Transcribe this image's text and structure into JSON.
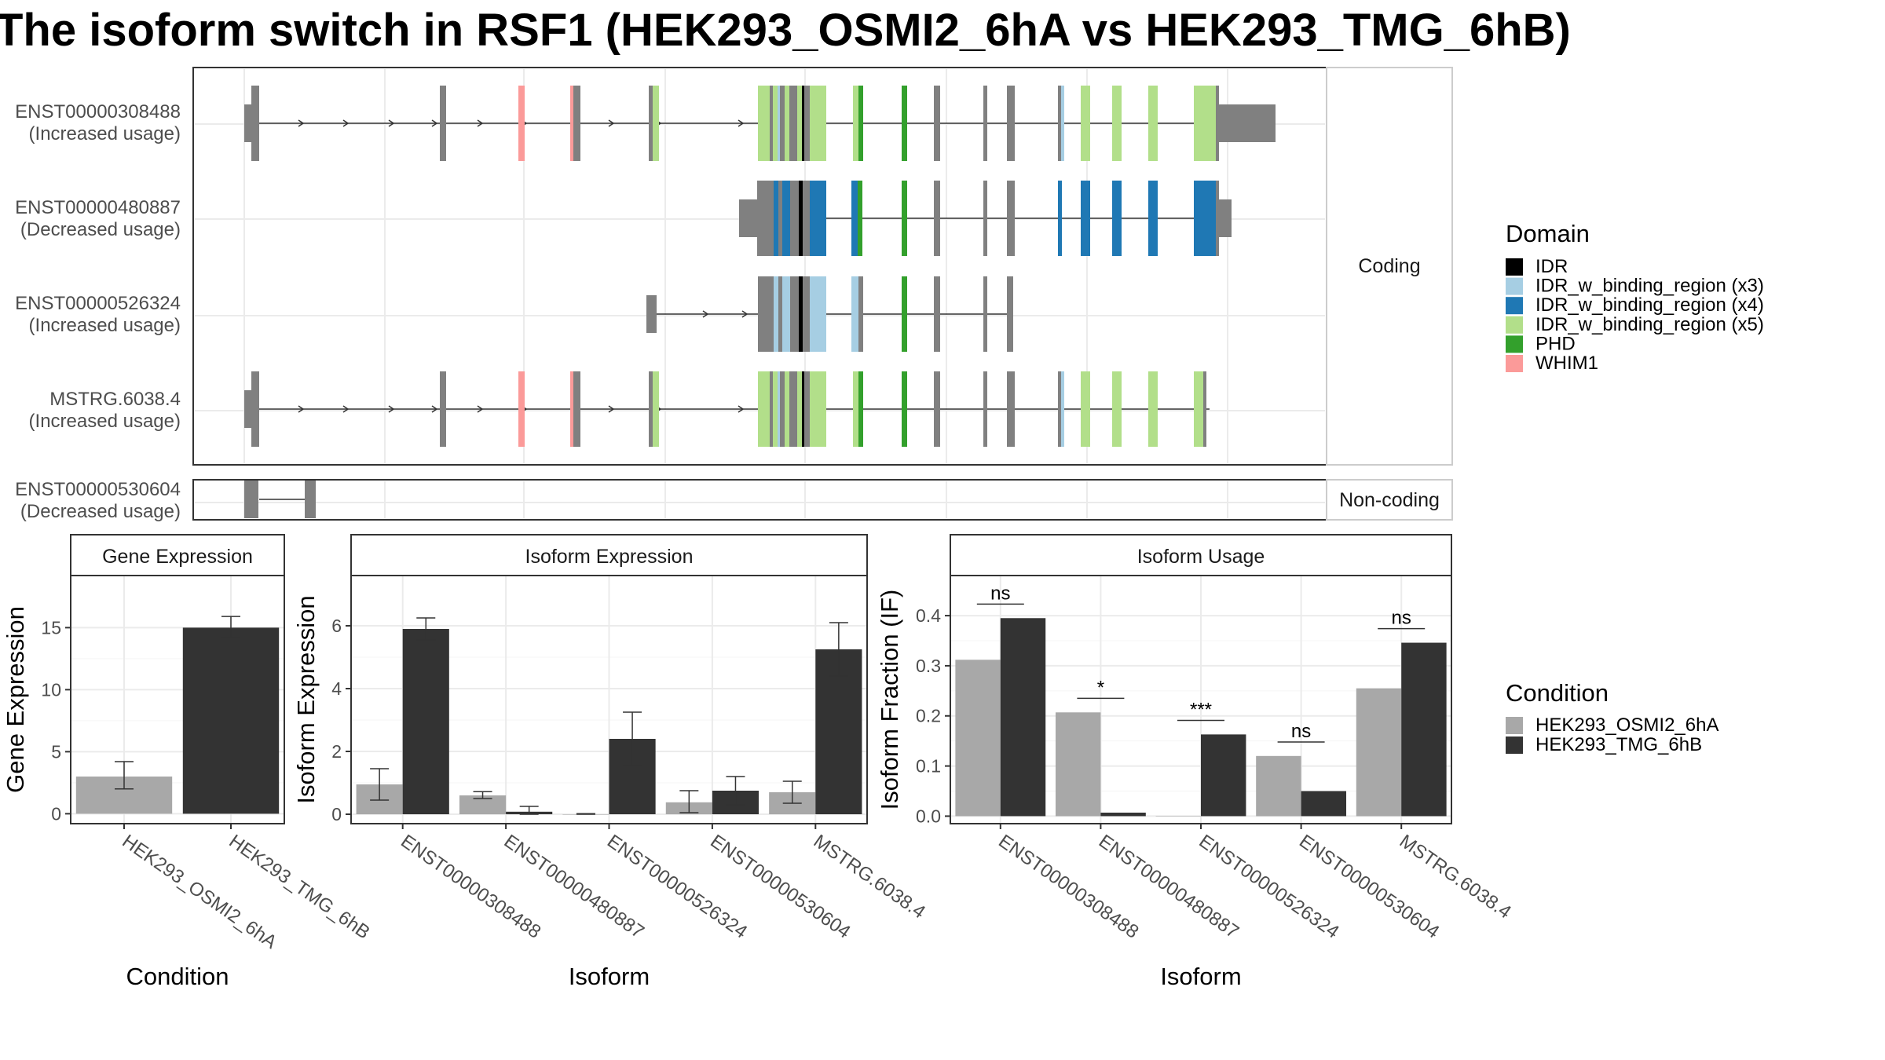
{
  "title": "The isoform switch in RSF1 (HEK293_OSMI2_6hA vs HEK293_TMG_6hB)",
  "colors": {
    "IDR": "#000000",
    "IDR_w_binding_region (x3)": "#a6cee3",
    "IDR_w_binding_region (x4)": "#1f78b4",
    "IDR_w_binding_region (x5)": "#b2df8a",
    "PHD": "#33a02c",
    "WHIM1": "#fb9a99",
    "exon": "#808080",
    "cond_a": "#a8a8a8",
    "cond_b": "#333333"
  },
  "structure": {
    "coding_label": "Coding",
    "noncoding_label": "Non-coding",
    "isoforms": [
      {
        "id": "ENST00000308488",
        "usage": "(Increased usage)"
      },
      {
        "id": "ENST00000480887",
        "usage": "(Decreased usage)"
      },
      {
        "id": "ENST00000526324",
        "usage": "(Increased usage)"
      },
      {
        "id": "MSTRG.6038.4",
        "usage": "(Increased usage)"
      },
      {
        "id": "ENST00000530604",
        "usage": "(Decreased usage)"
      }
    ]
  },
  "legend_domain": {
    "title": "Domain",
    "items": [
      {
        "label": "IDR",
        "color": "#000000"
      },
      {
        "label": "IDR_w_binding_region (x3)",
        "color": "#a6cee3"
      },
      {
        "label": "IDR_w_binding_region (x4)",
        "color": "#1f78b4"
      },
      {
        "label": "IDR_w_binding_region (x5)",
        "color": "#b2df8a"
      },
      {
        "label": "PHD",
        "color": "#33a02c"
      },
      {
        "label": "WHIM1",
        "color": "#fb9a99"
      }
    ]
  },
  "legend_condition": {
    "title": "Condition",
    "items": [
      {
        "label": "HEK293_OSMI2_6hA",
        "color": "#a8a8a8"
      },
      {
        "label": "HEK293_TMG_6hB",
        "color": "#333333"
      }
    ]
  },
  "chart_data": [
    {
      "type": "bar",
      "title": "Gene Expression",
      "xlabel": "Condition",
      "ylabel": "Gene Expression",
      "ylim": [
        -0.8,
        19.2
      ],
      "yticks": [
        0,
        5,
        10,
        15
      ],
      "categories": [
        "HEK293_OSMI2_6hA",
        "HEK293_TMG_6hB"
      ],
      "values": [
        3.0,
        15.0
      ],
      "err_low": [
        2.0,
        14.2
      ],
      "err_high": [
        4.2,
        15.9
      ]
    },
    {
      "type": "bar",
      "title": "Isoform Expression",
      "xlabel": "Isoform",
      "ylabel": "Isoform Expression",
      "ylim": [
        -0.3,
        7.6
      ],
      "yticks": [
        0,
        2,
        4,
        6
      ],
      "categories": [
        "ENST00000308488",
        "ENST00000480887",
        "ENST00000526324",
        "ENST00000530604",
        "MSTRG.6038.4"
      ],
      "series": [
        {
          "name": "HEK293_OSMI2_6hA",
          "values": [
            0.95,
            0.6,
            0.0,
            0.38,
            0.7
          ],
          "err_low": [
            0.45,
            0.5,
            0.0,
            0.05,
            0.35
          ],
          "err_high": [
            1.45,
            0.72,
            0.02,
            0.75,
            1.05
          ]
        },
        {
          "name": "HEK293_TMG_6hB",
          "values": [
            5.9,
            0.08,
            2.4,
            0.75,
            5.25
          ],
          "err_low": [
            5.55,
            0.0,
            1.55,
            0.3,
            4.4
          ],
          "err_high": [
            6.25,
            0.25,
            3.25,
            1.2,
            6.1
          ]
        }
      ]
    },
    {
      "type": "bar",
      "title": "Isoform Usage",
      "xlabel": "Isoform",
      "ylabel": "Isoform Fraction (IF)",
      "ylim": [
        -0.015,
        0.48
      ],
      "yticks": [
        0.0,
        0.1,
        0.2,
        0.3,
        0.4
      ],
      "ytick_labels": [
        "0.0",
        "0.1",
        "0.2",
        "0.3",
        "0.4"
      ],
      "categories": [
        "ENST00000308488",
        "ENST00000480887",
        "ENST00000526324",
        "ENST00000530604",
        "MSTRG.6038.4"
      ],
      "series": [
        {
          "name": "HEK293_OSMI2_6hA",
          "values": [
            0.312,
            0.207,
            0.0,
            0.12,
            0.255
          ]
        },
        {
          "name": "HEK293_TMG_6hB",
          "values": [
            0.395,
            0.007,
            0.163,
            0.05,
            0.346
          ]
        }
      ],
      "significance": [
        "ns",
        "*",
        "***",
        "ns",
        "ns"
      ]
    }
  ]
}
